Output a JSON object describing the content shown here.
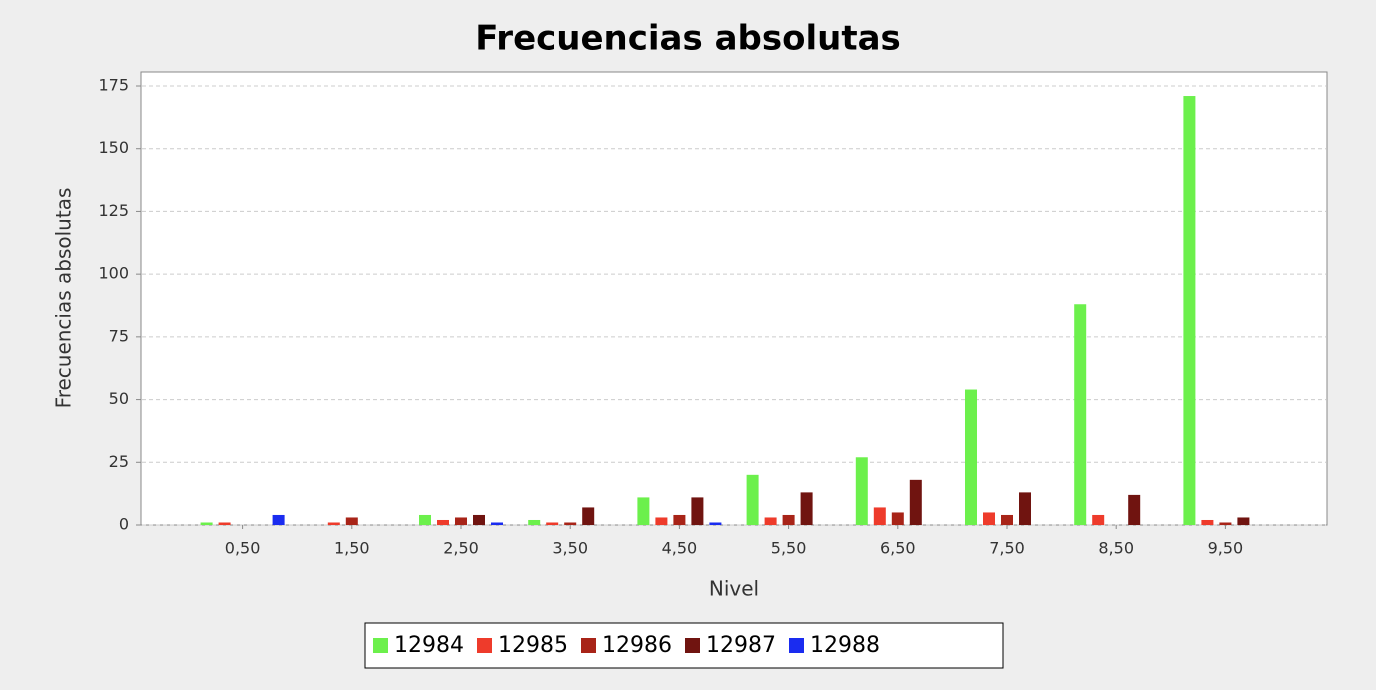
{
  "chart_data": {
    "type": "bar",
    "title": "Frecuencias absolutas",
    "x_label": "Nivel",
    "y_label": "Frecuencias absolutas",
    "categories": [
      "0,50",
      "1,50",
      "2,50",
      "3,50",
      "4,50",
      "5,50",
      "6,50",
      "7,50",
      "8,50",
      "9,50"
    ],
    "series": [
      {
        "name": "12984",
        "color": "#6cf04c",
        "values": [
          1,
          0,
          4,
          2,
          11,
          20,
          27,
          54,
          88,
          171
        ]
      },
      {
        "name": "12985",
        "color": "#ee3b2b",
        "values": [
          1,
          1,
          2,
          1,
          3,
          3,
          7,
          5,
          4,
          2
        ]
      },
      {
        "name": "12986",
        "color": "#a82418",
        "values": [
          0,
          3,
          3,
          1,
          4,
          4,
          5,
          4,
          0,
          1
        ]
      },
      {
        "name": "12987",
        "color": "#701410",
        "values": [
          0,
          0,
          4,
          7,
          11,
          13,
          18,
          13,
          12,
          3
        ]
      },
      {
        "name": "12988",
        "color": "#1a2cf0",
        "values": [
          4,
          0,
          1,
          0,
          1,
          0,
          0,
          0,
          0,
          0
        ]
      }
    ],
    "ylim": [
      0,
      175
    ],
    "yticks": [
      0,
      25,
      50,
      75,
      100,
      125,
      150,
      175
    ],
    "grid": true
  }
}
